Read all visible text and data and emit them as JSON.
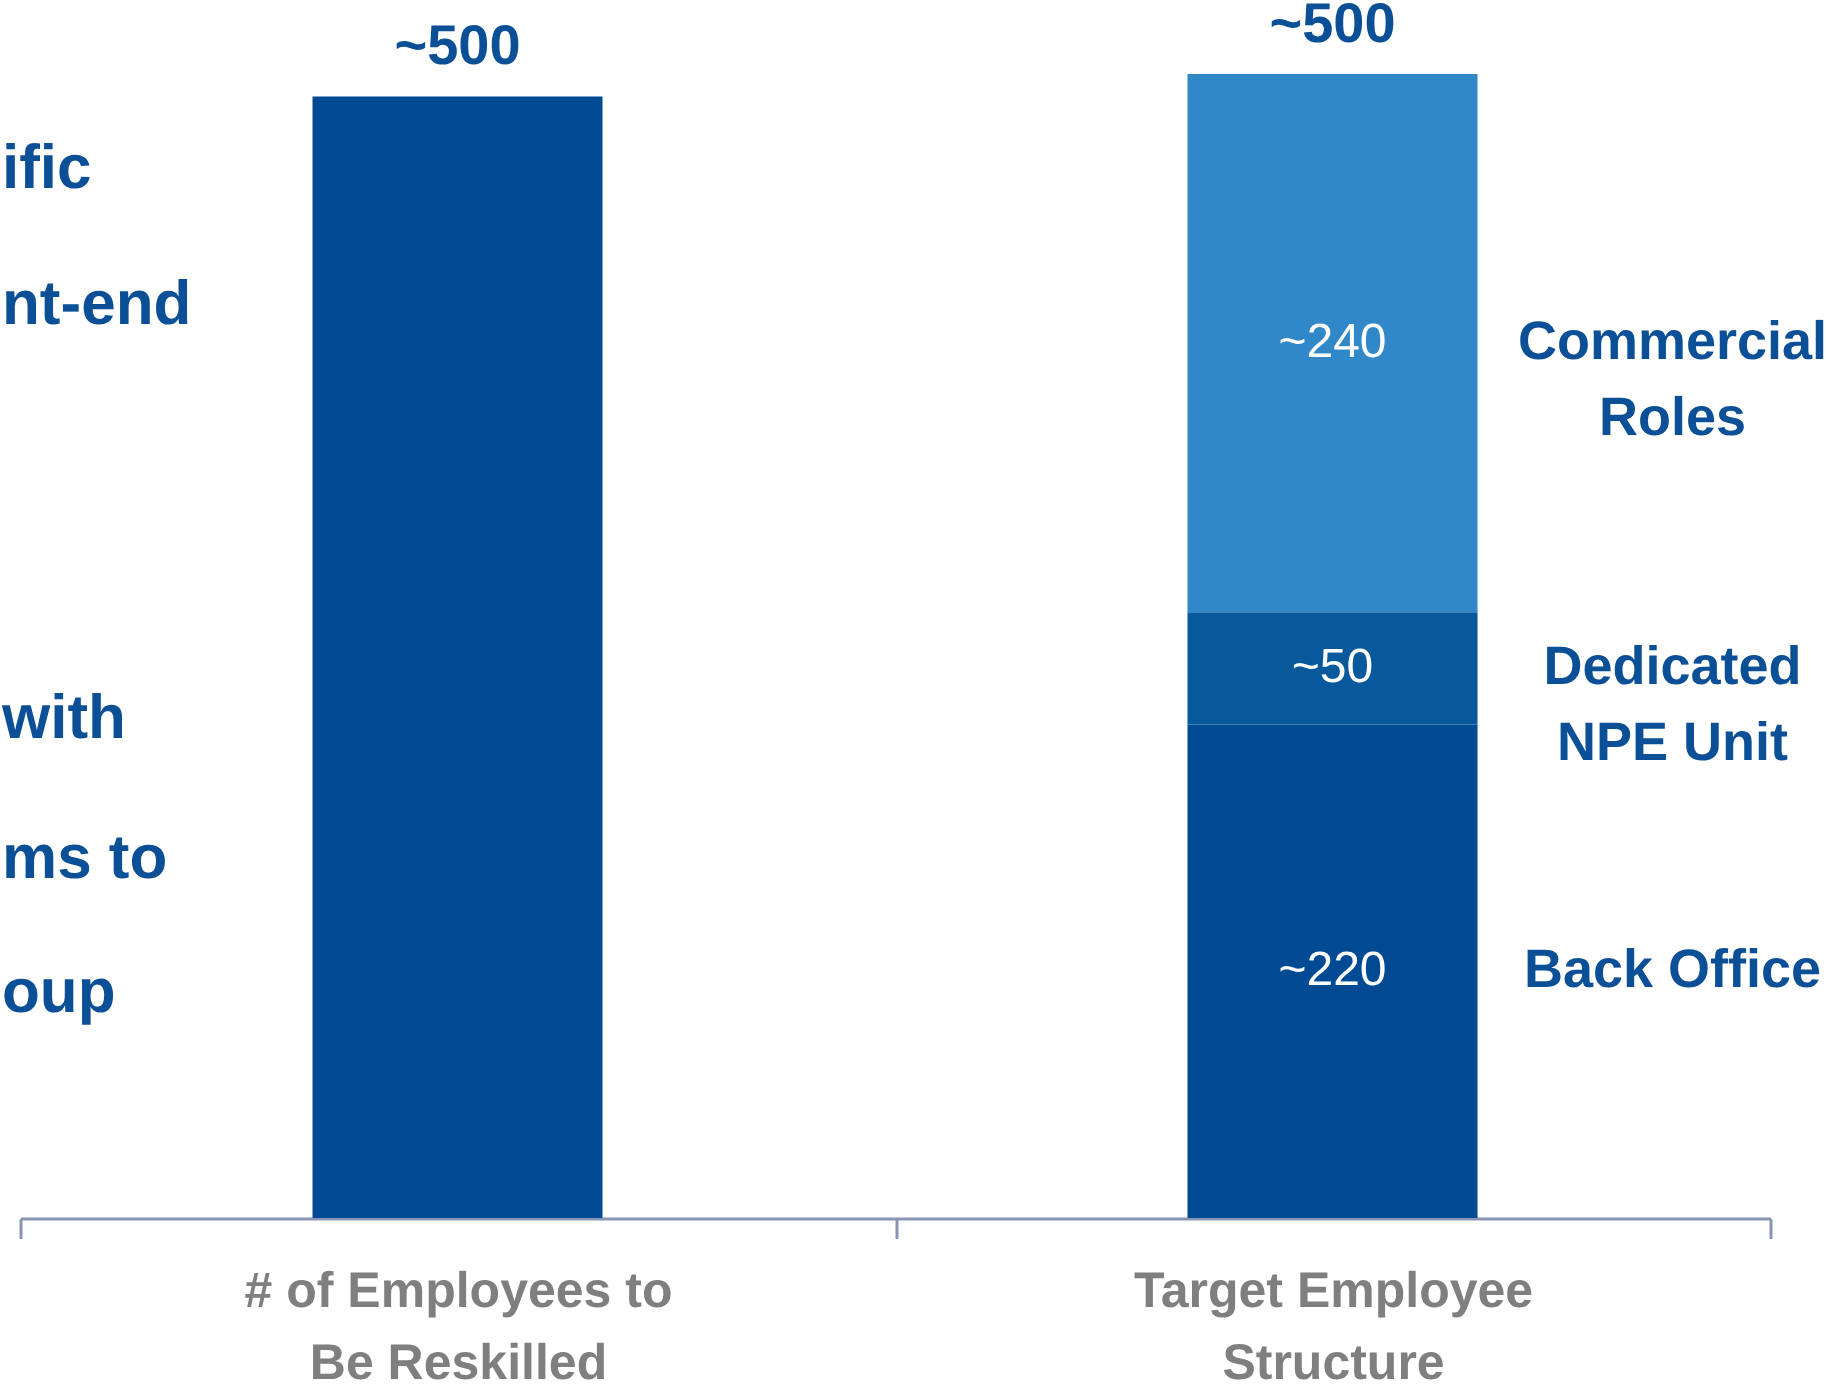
{
  "chart_data": {
    "type": "bar",
    "stacked": true,
    "categories": [
      "# of Employees to Be Reskilled",
      "Target Employee Structure"
    ],
    "series": [
      {
        "color": "#004a94",
        "values": [
          500,
          null
        ]
      },
      {
        "name": "Back Office",
        "color": "#004a94",
        "values": [
          null,
          220
        ],
        "value_labels": [
          null,
          "~220"
        ]
      },
      {
        "name": "Dedicated NPE Unit",
        "color": "#07599b",
        "values": [
          null,
          50
        ],
        "value_labels": [
          null,
          "~50"
        ]
      },
      {
        "name": "Commercial Roles",
        "color": "#3088c8",
        "values": [
          null,
          240
        ],
        "value_labels": [
          null,
          "~240"
        ]
      }
    ],
    "annotations": [
      {
        "text": "~500",
        "x": "# of Employees to Be Reskilled",
        "y": 500
      },
      {
        "text": "~500",
        "x": "Target Employee Structure",
        "y": 510
      },
      "ific",
      "nt-end",
      "with",
      "ms to",
      "oup"
    ]
  }
}
